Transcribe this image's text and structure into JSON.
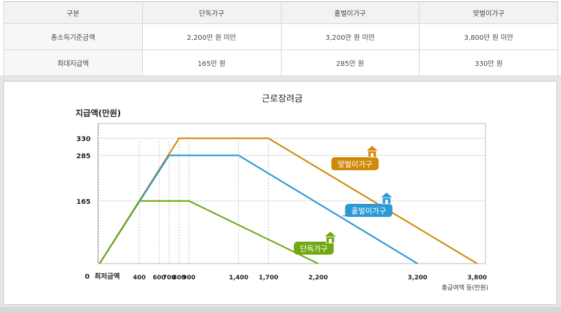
{
  "table": {
    "headers": [
      "구분",
      "단독가구",
      "홑벌이가구",
      "맞벌이가구"
    ],
    "rows": [
      [
        "총소득기준금액",
        "2,200만 원 미만",
        "3,200만 원 미만",
        "3,800만 원 미만"
      ],
      [
        "최대지급액",
        "165만 원",
        "285만 원",
        "330만 원"
      ]
    ]
  },
  "chart_data": {
    "type": "line",
    "title": "근로장려금",
    "ylabel": "지급액(만원)",
    "xlabel": "총급여액 등(만원)",
    "origin_label": "0",
    "minimum_label": "최저금액",
    "x_ticks": [
      {
        "value": 400,
        "label": "400"
      },
      {
        "value": 600,
        "label": "600"
      },
      {
        "value": 700,
        "label": "700"
      },
      {
        "value": 800,
        "label": "800"
      },
      {
        "value": 900,
        "label": "900"
      },
      {
        "value": 1400,
        "label": "1,400"
      },
      {
        "value": 1700,
        "label": "1,700"
      },
      {
        "value": 2200,
        "label": "2,200"
      },
      {
        "value": 3200,
        "label": "3,200"
      },
      {
        "value": 3800,
        "label": "3,800"
      }
    ],
    "y_ticks": [
      {
        "value": 165,
        "label": "165"
      },
      {
        "value": 285,
        "label": "285"
      },
      {
        "value": 330,
        "label": "330"
      }
    ],
    "series": [
      {
        "name": "맞벌이가구",
        "color": "#d08a0a",
        "icon": "house-icon",
        "points": [
          [
            0,
            0
          ],
          [
            800,
            330
          ],
          [
            1700,
            330
          ],
          [
            3800,
            0
          ]
        ]
      },
      {
        "name": "홑벌이가구",
        "color": "#2b9ad4",
        "icon": "house-icon",
        "points": [
          [
            0,
            0
          ],
          [
            700,
            285
          ],
          [
            1400,
            285
          ],
          [
            3200,
            0
          ]
        ]
      },
      {
        "name": "단독가구",
        "color": "#72a815",
        "icon": "house-icon",
        "points": [
          [
            0,
            0
          ],
          [
            400,
            165
          ],
          [
            900,
            165
          ],
          [
            2200,
            0
          ]
        ]
      }
    ]
  }
}
